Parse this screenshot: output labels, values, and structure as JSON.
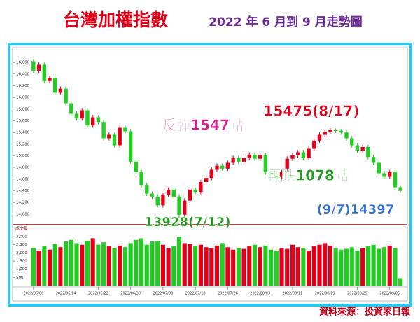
{
  "chart_data": {
    "type": "candlestick",
    "title": "台灣加權指數",
    "subtitle": "2022 年 6 月到 9 月走勢圖",
    "source": "資料來源：投資家日報",
    "volume_label": "成交量",
    "up_color": "#e0001a",
    "down_color": "#22cc22",
    "ylim": [
      13830,
      16830
    ],
    "yticks": [
      {
        "value": 14000,
        "label": "14,000"
      },
      {
        "value": 14200,
        "label": "14,200"
      },
      {
        "value": 14400,
        "label": "14,400"
      },
      {
        "value": 14600,
        "label": "14,600"
      },
      {
        "value": 14800,
        "label": "14,800"
      },
      {
        "value": 15000,
        "label": "15,000"
      },
      {
        "value": 15200,
        "label": "15,200"
      },
      {
        "value": 15400,
        "label": "15,400"
      },
      {
        "value": 15600,
        "label": "15,600"
      },
      {
        "value": 15800,
        "label": "15,800"
      },
      {
        "value": 16000,
        "label": "16,000"
      },
      {
        "value": 16200,
        "label": "16,200"
      },
      {
        "value": 16400,
        "label": "16,400"
      },
      {
        "value": 16600,
        "label": "16,600"
      }
    ],
    "vlim": [
      0,
      3690
    ],
    "vticks": [
      {
        "value": 500,
        "label": "500"
      },
      {
        "value": 1000,
        "label": "1,000"
      },
      {
        "value": 1500,
        "label": "1,500"
      },
      {
        "value": 2000,
        "label": "2,000"
      },
      {
        "value": 2500,
        "label": "2,500"
      },
      {
        "value": 3000,
        "label": "3,000"
      }
    ],
    "xticks": [
      {
        "value": 0,
        "label": "2022/06/06"
      },
      {
        "value": 6,
        "label": "2022/06/14"
      },
      {
        "value": 12,
        "label": "2022/06/22"
      },
      {
        "value": 18,
        "label": "2022/06/30"
      },
      {
        "value": 24,
        "label": "2022/07/08"
      },
      {
        "value": 30,
        "label": "2022/07/18"
      },
      {
        "value": 36,
        "label": "2022/07/26"
      },
      {
        "value": 42,
        "label": "2022/08/03"
      },
      {
        "value": 48,
        "label": "2022/08/11"
      },
      {
        "value": 54,
        "label": "2022/08/19"
      },
      {
        "value": 60,
        "label": "2022/08/29"
      },
      {
        "value": 66,
        "label": "2022/09/06"
      }
    ],
    "candles": [
      [
        16620,
        16643,
        16410,
        16450
      ],
      [
        16450,
        16600,
        16410,
        16560
      ],
      [
        16560,
        16600,
        16240,
        16280
      ],
      [
        16280,
        16370,
        16240,
        16330
      ],
      [
        16330,
        16370,
        16040,
        16080
      ],
      [
        16080,
        16190,
        16040,
        16150
      ],
      [
        16150,
        16190,
        15860,
        15900
      ],
      [
        15900,
        15940,
        15680,
        15720
      ],
      [
        15720,
        15760,
        15600,
        15640
      ],
      [
        15640,
        15820,
        15600,
        15780
      ],
      [
        15780,
        15820,
        15480,
        15520
      ],
      [
        15520,
        15700,
        15480,
        15660
      ],
      [
        15660,
        15700,
        15540,
        15580
      ],
      [
        15580,
        15620,
        15260,
        15300
      ],
      [
        15300,
        15400,
        15260,
        15360
      ],
      [
        15360,
        15400,
        15140,
        15180
      ],
      [
        15180,
        15520,
        15140,
        15480
      ],
      [
        15480,
        15520,
        15380,
        15420
      ],
      [
        15420,
        15460,
        14860,
        14900
      ],
      [
        14900,
        14940,
        14680,
        14720
      ],
      [
        14720,
        14760,
        14460,
        14500
      ],
      [
        14500,
        14540,
        14310,
        14350
      ],
      [
        14350,
        14390,
        14260,
        14300
      ],
      [
        14300,
        14340,
        14110,
        14150
      ],
      [
        14150,
        14370,
        14110,
        14330
      ],
      [
        14330,
        14460,
        14290,
        14420
      ],
      [
        14420,
        14460,
        14260,
        14300
      ],
      [
        14300,
        14340,
        13928,
        13990
      ],
      [
        13990,
        14270,
        13950,
        14230
      ],
      [
        14230,
        14460,
        14190,
        14420
      ],
      [
        14420,
        14460,
        14340,
        14380
      ],
      [
        14380,
        14590,
        14340,
        14550
      ],
      [
        14550,
        14660,
        14510,
        14620
      ],
      [
        14620,
        14800,
        14580,
        14760
      ],
      [
        14760,
        14870,
        14720,
        14830
      ],
      [
        14830,
        14870,
        14740,
        14780
      ],
      [
        14780,
        14920,
        14740,
        14880
      ],
      [
        14880,
        15000,
        14840,
        14960
      ],
      [
        14960,
        15000,
        14860,
        14900
      ],
      [
        14900,
        15000,
        14860,
        14960
      ],
      [
        14960,
        15060,
        14920,
        15020
      ],
      [
        15020,
        15060,
        14910,
        14950
      ],
      [
        14950,
        15050,
        14910,
        15010
      ],
      [
        15010,
        15050,
        14680,
        14720
      ],
      [
        14720,
        14760,
        14620,
        14660
      ],
      [
        14660,
        14700,
        14560,
        14600
      ],
      [
        14600,
        14760,
        14560,
        14720
      ],
      [
        14720,
        14990,
        14680,
        14950
      ],
      [
        14950,
        15050,
        14910,
        15010
      ],
      [
        15010,
        15100,
        14970,
        15060
      ],
      [
        15060,
        15100,
        14920,
        14960
      ],
      [
        14960,
        15160,
        14920,
        15120
      ],
      [
        15120,
        15300,
        15080,
        15260
      ],
      [
        15260,
        15400,
        15220,
        15360
      ],
      [
        15360,
        15450,
        15320,
        15410
      ],
      [
        15410,
        15475,
        15370,
        15440
      ],
      [
        15440,
        15470,
        15390,
        15430
      ],
      [
        15430,
        15460,
        15360,
        15400
      ],
      [
        15400,
        15440,
        15260,
        15300
      ],
      [
        15300,
        15340,
        15140,
        15180
      ],
      [
        15180,
        15220,
        15050,
        15090
      ],
      [
        15090,
        15190,
        15050,
        15150
      ],
      [
        15150,
        15190,
        14940,
        14980
      ],
      [
        14980,
        15020,
        14840,
        14880
      ],
      [
        14880,
        14920,
        14660,
        14700
      ],
      [
        14700,
        14740,
        14600,
        14640
      ],
      [
        14640,
        14760,
        14600,
        14720
      ],
      [
        14720,
        14760,
        14420,
        14460
      ],
      [
        14460,
        14490,
        14380,
        14397
      ]
    ],
    "volume": [
      2300,
      2150,
      2400,
      2200,
      2550,
      2350,
      2700,
      2800,
      2600,
      2500,
      2750,
      2900,
      2500,
      2650,
      2400,
      2300,
      2450,
      2350,
      2600,
      2800,
      2900,
      2500,
      2700,
      2750,
      2500,
      2300,
      2400,
      3000,
      2600,
      2550,
      2400,
      2500,
      2350,
      2300,
      2450,
      2600,
      2350,
      2200,
      2300,
      2250,
      2400,
      2500,
      2350,
      2450,
      2200,
      2150,
      2300,
      2250,
      2500,
      2350,
      2300,
      2150,
      2400,
      2500,
      2600,
      2450,
      2300,
      2200,
      2250,
      2350,
      2150,
      2300,
      2400,
      2500,
      2250,
      2350,
      2450,
      2300,
      450
    ],
    "annotations": [
      {
        "text": "反彈1547點",
        "color": "#e0198c"
      },
      {
        "text": "15475(8/17)",
        "color": "#e0001a"
      },
      {
        "text": "再跌1078點",
        "color": "#1f9a1f"
      },
      {
        "text": "(9/7)14397",
        "color": "#2a6fd6"
      },
      {
        "text": "13928(7/12)",
        "color": "#1f9a1f"
      }
    ]
  }
}
